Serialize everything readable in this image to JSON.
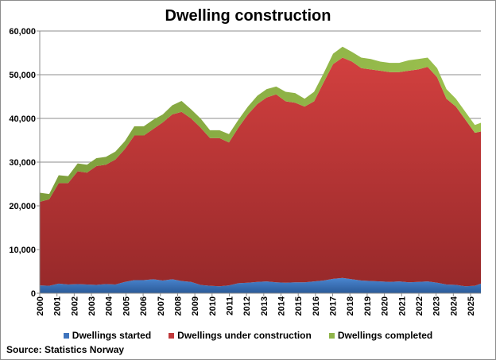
{
  "chart_data": {
    "type": "area",
    "stacked": true,
    "title": "Dwelling construction",
    "xlabel": "",
    "ylabel": "",
    "ylim": [
      0,
      60000
    ],
    "xlim": [
      2000,
      2025.6
    ],
    "y_ticks": [
      "0",
      "10,000",
      "20,000",
      "30,000",
      "40,000",
      "50,000",
      "60,000"
    ],
    "y_tick_values": [
      0,
      10000,
      20000,
      30000,
      40000,
      50000,
      60000
    ],
    "x_ticks": [
      "2000",
      "2001",
      "2002",
      "2003",
      "2004",
      "2005",
      "2006",
      "2007",
      "2008",
      "2009",
      "2010",
      "2011",
      "2012",
      "2013",
      "2014",
      "2015",
      "2016",
      "2017",
      "2018",
      "2019",
      "2020",
      "2021",
      "2022",
      "2023",
      "2024",
      "2025"
    ],
    "grid": "horizontal",
    "legend_position": "bottom",
    "source": "Source: Statistics Norway",
    "x": [
      2000.0,
      2000.55,
      2001.1,
      2001.65,
      2002.2,
      2002.74,
      2003.29,
      2003.84,
      2004.39,
      2004.94,
      2005.49,
      2006.04,
      2006.59,
      2007.14,
      2007.69,
      2008.23,
      2008.78,
      2009.33,
      2009.88,
      2010.43,
      2010.98,
      2011.53,
      2012.08,
      2012.63,
      2013.17,
      2013.72,
      2014.27,
      2014.82,
      2015.37,
      2015.92,
      2016.47,
      2017.02,
      2017.57,
      2018.12,
      2018.66,
      2019.21,
      2019.76,
      2020.31,
      2020.86,
      2021.41,
      2021.96,
      2022.51,
      2023.06,
      2023.6,
      2024.15,
      2024.7,
      2025.25,
      2025.6
    ],
    "series": [
      {
        "name": "Dwellings started",
        "color": "#3f74bd",
        "values": [
          1800,
          1700,
          2200,
          2000,
          2100,
          2000,
          1900,
          2100,
          2000,
          2600,
          3000,
          3000,
          3200,
          2900,
          3200,
          2800,
          2600,
          1900,
          1700,
          1600,
          1800,
          2300,
          2400,
          2600,
          2700,
          2500,
          2400,
          2500,
          2500,
          2700,
          2900,
          3300,
          3500,
          3200,
          2900,
          2800,
          2700,
          2600,
          2700,
          2500,
          2600,
          2700,
          2400,
          2000,
          1900,
          1600,
          1700,
          2200
        ]
      },
      {
        "name": "Dwellings under construction",
        "color": "#c0393b",
        "values": [
          19100,
          19800,
          23000,
          23200,
          25800,
          25600,
          27200,
          27300,
          28600,
          30400,
          33100,
          33100,
          34400,
          36200,
          37700,
          38700,
          37400,
          36000,
          33800,
          33900,
          32700,
          35600,
          38500,
          40700,
          42100,
          43000,
          41500,
          41100,
          40200,
          41200,
          45300,
          49100,
          50400,
          49800,
          48600,
          48400,
          48200,
          48000,
          47900,
          48400,
          48600,
          49100,
          47000,
          42500,
          40800,
          38100,
          35000,
          34800
        ]
      },
      {
        "name": "Dwellings completed",
        "color": "#8fb44a",
        "values": [
          2100,
          1200,
          1800,
          1600,
          1800,
          1800,
          1800,
          1800,
          1800,
          1800,
          2100,
          2100,
          2100,
          1800,
          2100,
          2500,
          2100,
          2100,
          1800,
          1800,
          1900,
          1800,
          1800,
          1900,
          1900,
          1800,
          2200,
          2200,
          1800,
          2200,
          2100,
          2400,
          2500,
          2200,
          2400,
          2400,
          2100,
          2100,
          2100,
          2400,
          2400,
          2100,
          2100,
          2200,
          1800,
          1800,
          1800,
          2000
        ]
      }
    ]
  }
}
